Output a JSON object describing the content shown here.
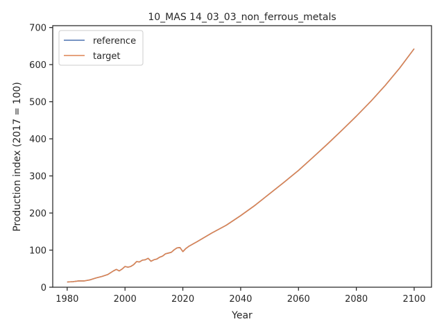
{
  "chart_data": {
    "type": "line",
    "title": "10_MAS 14_03_03_non_ferrous_metals",
    "xlabel": "Year",
    "ylabel": "Production index (2017 = 100)",
    "xlim": [
      1975,
      2106
    ],
    "ylim": [
      0,
      705
    ],
    "xticks": [
      1980,
      2000,
      2020,
      2040,
      2060,
      2080,
      2100
    ],
    "yticks": [
      0,
      100,
      200,
      300,
      400,
      500,
      600,
      700
    ],
    "grid": false,
    "legend_position": "upper-left",
    "series": [
      {
        "name": "reference",
        "color": "#4c72b0",
        "x": [
          1980,
          1982,
          1984,
          1986,
          1988,
          1990,
          1992,
          1994,
          1996,
          1997,
          1998,
          1999,
          2000,
          2001,
          2002,
          2003,
          2004,
          2005,
          2006,
          2007,
          2008,
          2009,
          2010,
          2011,
          2012,
          2013,
          2014,
          2015,
          2016,
          2017,
          2018,
          2019,
          2020,
          2021,
          2022,
          2025,
          2030,
          2035,
          2040,
          2045,
          2050,
          2055,
          2060,
          2065,
          2070,
          2075,
          2080,
          2085,
          2090,
          2095,
          2100
        ],
        "y": [
          14,
          15,
          17,
          17,
          20,
          25,
          29,
          34,
          44,
          48,
          44,
          49,
          56,
          54,
          56,
          61,
          69,
          68,
          73,
          74,
          78,
          70,
          74,
          76,
          81,
          84,
          90,
          92,
          94,
          101,
          106,
          107,
          96,
          104,
          110,
          123,
          146,
          167,
          193,
          221,
          252,
          283,
          315,
          350,
          386,
          423,
          461,
          501,
          544,
          591,
          643
        ]
      },
      {
        "name": "target",
        "color": "#dd8452",
        "x": [
          1980,
          1982,
          1984,
          1986,
          1988,
          1990,
          1992,
          1994,
          1996,
          1997,
          1998,
          1999,
          2000,
          2001,
          2002,
          2003,
          2004,
          2005,
          2006,
          2007,
          2008,
          2009,
          2010,
          2011,
          2012,
          2013,
          2014,
          2015,
          2016,
          2017,
          2018,
          2019,
          2020,
          2021,
          2022,
          2025,
          2030,
          2035,
          2040,
          2045,
          2050,
          2055,
          2060,
          2065,
          2070,
          2075,
          2080,
          2085,
          2090,
          2095,
          2100
        ],
        "y": [
          14,
          15,
          17,
          17,
          20,
          25,
          29,
          34,
          44,
          48,
          44,
          49,
          56,
          54,
          56,
          61,
          69,
          68,
          73,
          74,
          78,
          70,
          74,
          76,
          81,
          84,
          90,
          92,
          94,
          101,
          106,
          107,
          96,
          104,
          110,
          123,
          146,
          167,
          193,
          221,
          252,
          283,
          315,
          350,
          386,
          423,
          461,
          501,
          544,
          591,
          643
        ]
      }
    ]
  }
}
